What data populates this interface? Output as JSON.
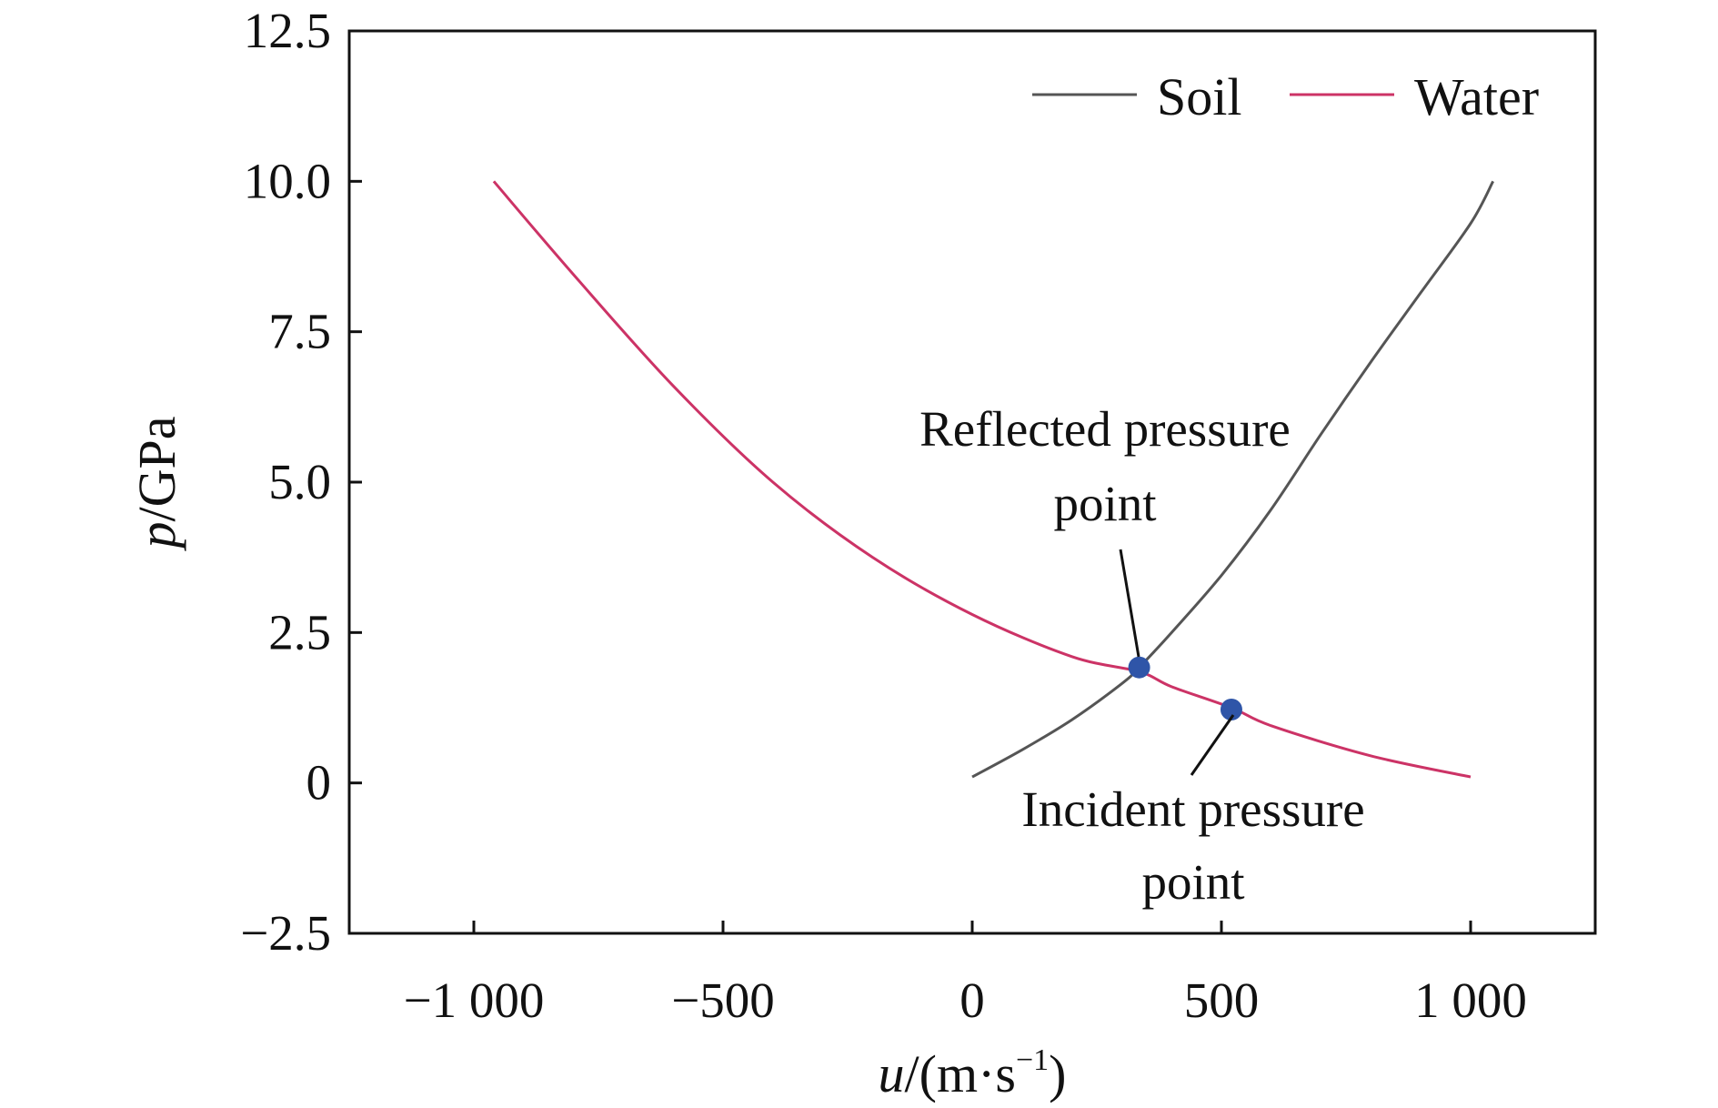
{
  "chart_data": {
    "type": "line",
    "xlabel": {
      "var": "u",
      "unit_open": "/(m·s",
      "sup": "−1",
      "unit_close": ")"
    },
    "ylabel": {
      "var": "p",
      "unit": "/GPa"
    },
    "xlim": [
      -1250,
      1250
    ],
    "ylim": [
      -2.5,
      12.5
    ],
    "xticks": [
      -1000,
      -500,
      0,
      500,
      1000
    ],
    "xtick_labels": [
      "−1 000",
      "−500",
      "0",
      "500",
      "1 000"
    ],
    "yticks": [
      -2.5,
      0,
      2.5,
      5.0,
      7.5,
      10.0,
      12.5
    ],
    "ytick_labels": [
      "−2.5",
      "0",
      "2.5",
      "5.0",
      "7.5",
      "10.0",
      "12.5"
    ],
    "grid": false,
    "legend_position": "top-right",
    "series": [
      {
        "name": "Soil",
        "color": "#555555",
        "x": [
          0,
          100,
          200,
          300,
          335,
          400,
          500,
          600,
          700,
          800,
          900,
          1000,
          1045
        ],
        "y": [
          0.1,
          0.55,
          1.05,
          1.65,
          1.92,
          2.5,
          3.45,
          4.55,
          5.8,
          7.0,
          8.15,
          9.3,
          10.0
        ]
      },
      {
        "name": "Water",
        "color": "#cc3366",
        "x": [
          -960,
          -800,
          -600,
          -400,
          -200,
          0,
          200,
          335,
          400,
          520,
          600,
          800,
          1000
        ],
        "y": [
          10.0,
          8.45,
          6.6,
          5.0,
          3.75,
          2.8,
          2.1,
          1.85,
          1.6,
          1.25,
          0.95,
          0.45,
          0.1
        ]
      }
    ],
    "points": [
      {
        "label": "Reflected pressure point",
        "x": 335,
        "y": 1.92,
        "color": "#2f55a8"
      },
      {
        "label": "Incident pressure point",
        "x": 520,
        "y": 1.22,
        "color": "#2f55a8"
      }
    ],
    "annotations": [
      {
        "id": "reflected",
        "lines": [
          "Reflected pressure",
          "point"
        ]
      },
      {
        "id": "incident",
        "lines": [
          "Incident pressure",
          "point"
        ]
      }
    ]
  }
}
